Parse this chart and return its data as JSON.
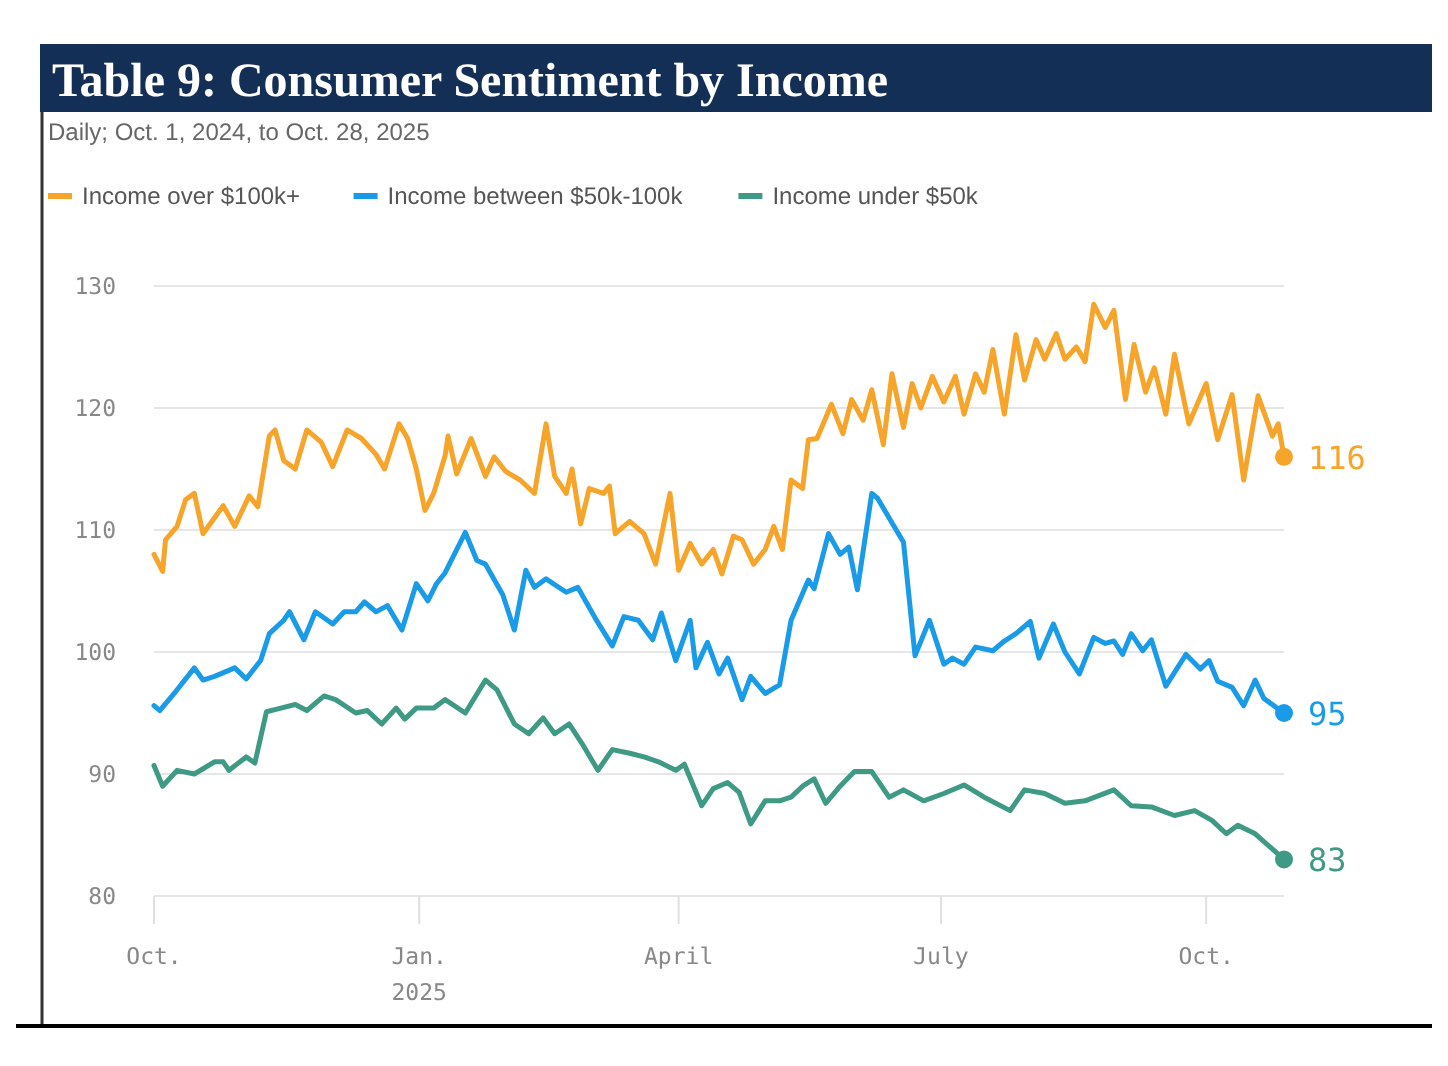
{
  "chart_data": {
    "type": "line",
    "title": "Table 9: Consumer Sentiment by Income",
    "subtitle": "Daily; Oct. 1, 2024, to Oct. 28, 2025",
    "xlim": [
      "2024-10-01",
      "2025-10-28"
    ],
    "xticks": [
      {
        "value": "2024-10-01",
        "label": "Oct."
      },
      {
        "value": "2025-01-01",
        "label": "Jan.\n2025"
      },
      {
        "value": "2025-04-01",
        "label": "April"
      },
      {
        "value": "2025-07-01",
        "label": "July"
      },
      {
        "value": "2025-10-01",
        "label": "Oct."
      }
    ],
    "ylim": [
      80,
      130
    ],
    "yticks": [
      80,
      90,
      100,
      110,
      120,
      130
    ],
    "grid": "y",
    "legend": "top left",
    "marker": "none",
    "line_style": "solid",
    "series": [
      {
        "name": "Income over $100k+",
        "color": "#f7a52a",
        "x": [
          "2024-10-01",
          "2024-10-04",
          "2024-10-05",
          "2024-10-09",
          "2024-10-12",
          "2024-10-15",
          "2024-10-18",
          "2024-10-22",
          "2024-10-25",
          "2024-10-29",
          "2024-11-03",
          "2024-11-06",
          "2024-11-10",
          "2024-11-12",
          "2024-11-15",
          "2024-11-19",
          "2024-11-23",
          "2024-11-28",
          "2024-12-02",
          "2024-12-07",
          "2024-12-12",
          "2024-12-17",
          "2024-12-20",
          "2024-12-25",
          "2024-12-28",
          "2024-12-31",
          "2025-01-03",
          "2025-01-06",
          "2025-01-10",
          "2025-01-11",
          "2025-01-14",
          "2025-01-19",
          "2025-01-24",
          "2025-01-27",
          "2025-01-31",
          "2025-02-05",
          "2025-02-10",
          "2025-02-14",
          "2025-02-17",
          "2025-02-21",
          "2025-02-23",
          "2025-02-26",
          "2025-03-01",
          "2025-03-06",
          "2025-03-08",
          "2025-03-10",
          "2025-03-15",
          "2025-03-20",
          "2025-03-24",
          "2025-03-29",
          "2025-04-01",
          "2025-04-05",
          "2025-04-09",
          "2025-04-13",
          "2025-04-16",
          "2025-04-20",
          "2025-04-23",
          "2025-04-27",
          "2025-05-01",
          "2025-05-04",
          "2025-05-07",
          "2025-05-10",
          "2025-05-14",
          "2025-05-16",
          "2025-05-19",
          "2025-05-24",
          "2025-05-28",
          "2025-05-31",
          "2025-06-04",
          "2025-06-07",
          "2025-06-11",
          "2025-06-14",
          "2025-06-18",
          "2025-06-21",
          "2025-06-24",
          "2025-06-28",
          "2025-07-02",
          "2025-07-06",
          "2025-07-09",
          "2025-07-13",
          "2025-07-16",
          "2025-07-19",
          "2025-07-23",
          "2025-07-27",
          "2025-07-30",
          "2025-08-03",
          "2025-08-06",
          "2025-08-10",
          "2025-08-13",
          "2025-08-17",
          "2025-08-20",
          "2025-08-23",
          "2025-08-27",
          "2025-08-30",
          "2025-09-03",
          "2025-09-06",
          "2025-09-10",
          "2025-09-13",
          "2025-09-17",
          "2025-09-20",
          "2025-09-25",
          "2025-10-01",
          "2025-10-05",
          "2025-10-10",
          "2025-10-14",
          "2025-10-19",
          "2025-10-24",
          "2025-10-26",
          "2025-10-28"
        ],
        "values": [
          108,
          106.6,
          109.2,
          110.3,
          112.5,
          113,
          109.7,
          111,
          112,
          110.3,
          112.8,
          111.9,
          117.7,
          118.2,
          115.7,
          115,
          118.2,
          117.2,
          115.2,
          118.2,
          117.5,
          116.2,
          115,
          118.7,
          117.5,
          115,
          111.6,
          113,
          116.1,
          117.7,
          114.6,
          117.5,
          114.4,
          116,
          114.8,
          114.1,
          113,
          118.7,
          114.4,
          113,
          115,
          110.5,
          113.4,
          113,
          113.6,
          109.7,
          110.7,
          109.7,
          107.2,
          113,
          106.7,
          108.9,
          107.2,
          108.4,
          106.4,
          109.5,
          109.2,
          107.2,
          108.4,
          110.3,
          108.4,
          114.1,
          113.4,
          117.4,
          117.5,
          120.3,
          117.9,
          120.7,
          119,
          121.5,
          117,
          122.8,
          118.4,
          122,
          120,
          122.6,
          120.5,
          122.6,
          119.5,
          122.8,
          121.3,
          124.8,
          119.5,
          126,
          122.3,
          125.6,
          124,
          126.1,
          124,
          125,
          123.8,
          128.5,
          126.6,
          128,
          120.7,
          125.2,
          121.3,
          123.3,
          119.5,
          124.4,
          118.7,
          122,
          117.4,
          121.1,
          114.1,
          121,
          117.7,
          118.7,
          116
        ]
      },
      {
        "name": "Income between $50k-100k",
        "color": "#1a9be8",
        "x": [
          "2024-10-01",
          "2024-10-03",
          "2024-10-08",
          "2024-10-15",
          "2024-10-18",
          "2024-10-22",
          "2024-10-29",
          "2024-11-02",
          "2024-11-07",
          "2024-11-10",
          "2024-11-15",
          "2024-11-17",
          "2024-11-22",
          "2024-11-26",
          "2024-12-02",
          "2024-12-06",
          "2024-12-10",
          "2024-12-13",
          "2024-12-17",
          "2024-12-21",
          "2024-12-26",
          "2024-12-31",
          "2025-01-04",
          "2025-01-07",
          "2025-01-10",
          "2025-01-17",
          "2025-01-21",
          "2025-01-24",
          "2025-01-30",
          "2025-02-03",
          "2025-02-07",
          "2025-02-10",
          "2025-02-14",
          "2025-02-21",
          "2025-02-25",
          "2025-03-03",
          "2025-03-09",
          "2025-03-13",
          "2025-03-18",
          "2025-03-23",
          "2025-03-26",
          "2025-03-31",
          "2025-04-05",
          "2025-04-07",
          "2025-04-11",
          "2025-04-15",
          "2025-04-18",
          "2025-04-23",
          "2025-04-26",
          "2025-05-01",
          "2025-05-06",
          "2025-05-10",
          "2025-05-16",
          "2025-05-18",
          "2025-05-23",
          "2025-05-27",
          "2025-05-30",
          "2025-06-02",
          "2025-06-07",
          "2025-06-09",
          "2025-06-14",
          "2025-06-18",
          "2025-06-22",
          "2025-06-27",
          "2025-07-02",
          "2025-07-05",
          "2025-07-09",
          "2025-07-13",
          "2025-07-19",
          "2025-07-23",
          "2025-07-27",
          "2025-08-01",
          "2025-08-04",
          "2025-08-09",
          "2025-08-13",
          "2025-08-18",
          "2025-08-23",
          "2025-08-27",
          "2025-08-30",
          "2025-09-02",
          "2025-09-05",
          "2025-09-09",
          "2025-09-12",
          "2025-09-17",
          "2025-09-24",
          "2025-09-29",
          "2025-10-02",
          "2025-10-05",
          "2025-10-10",
          "2025-10-14",
          "2025-10-18",
          "2025-10-21",
          "2025-10-28"
        ],
        "values": [
          95.6,
          95.2,
          96.6,
          98.7,
          97.7,
          98,
          98.7,
          97.8,
          99.3,
          101.5,
          102.6,
          103.3,
          101,
          103.3,
          102.3,
          103.3,
          103.3,
          104.1,
          103.3,
          103.8,
          101.8,
          105.6,
          104.2,
          105.6,
          106.5,
          109.8,
          107.5,
          107.2,
          104.7,
          101.8,
          106.7,
          105.3,
          106,
          104.9,
          105.3,
          102.8,
          100.5,
          102.9,
          102.6,
          101,
          103.2,
          99.3,
          102.6,
          98.7,
          100.8,
          98.2,
          99.5,
          96.1,
          98,
          96.6,
          97.3,
          102.6,
          105.9,
          105.2,
          109.7,
          108,
          108.6,
          105.1,
          113,
          112.6,
          110.6,
          109,
          99.7,
          102.6,
          99,
          99.5,
          99,
          100.4,
          100.1,
          100.9,
          101.5,
          102.5,
          99.5,
          102.3,
          100,
          98.2,
          101.2,
          100.7,
          100.9,
          99.8,
          101.5,
          100.1,
          101,
          97.2,
          99.8,
          98.6,
          99.3,
          97.6,
          97.1,
          95.6,
          97.7,
          96.2,
          95
        ]
      },
      {
        "name": "Income under $50k",
        "color": "#3f9a85",
        "x": [
          "2024-10-01",
          "2024-10-04",
          "2024-10-09",
          "2024-10-15",
          "2024-10-22",
          "2024-10-25",
          "2024-10-27",
          "2024-11-02",
          "2024-11-05",
          "2024-11-09",
          "2024-11-14",
          "2024-11-19",
          "2024-11-23",
          "2024-11-29",
          "2024-12-03",
          "2024-12-10",
          "2024-12-14",
          "2024-12-19",
          "2024-12-24",
          "2024-12-27",
          "2024-12-31",
          "2025-01-06",
          "2025-01-10",
          "2025-01-17",
          "2025-01-24",
          "2025-01-28",
          "2025-02-03",
          "2025-02-08",
          "2025-02-13",
          "2025-02-17",
          "2025-02-22",
          "2025-02-27",
          "2025-03-04",
          "2025-03-09",
          "2025-03-15",
          "2025-03-20",
          "2025-03-25",
          "2025-03-31",
          "2025-04-03",
          "2025-04-09",
          "2025-04-13",
          "2025-04-18",
          "2025-04-22",
          "2025-04-26",
          "2025-05-01",
          "2025-05-06",
          "2025-05-10",
          "2025-05-14",
          "2025-05-18",
          "2025-05-22",
          "2025-05-27",
          "2025-06-01",
          "2025-06-07",
          "2025-06-13",
          "2025-06-18",
          "2025-06-25",
          "2025-07-02",
          "2025-07-09",
          "2025-07-16",
          "2025-07-25",
          "2025-07-30",
          "2025-08-06",
          "2025-08-13",
          "2025-08-20",
          "2025-08-30",
          "2025-09-05",
          "2025-09-12",
          "2025-09-20",
          "2025-09-27",
          "2025-10-03",
          "2025-10-08",
          "2025-10-12",
          "2025-10-18",
          "2025-10-28"
        ],
        "values": [
          90.7,
          89,
          90.3,
          90,
          91,
          91,
          90.3,
          91.4,
          90.9,
          95.1,
          95.4,
          95.7,
          95.2,
          96.4,
          96.1,
          95,
          95.2,
          94.1,
          95.4,
          94.5,
          95.4,
          95.4,
          96.1,
          95,
          97.7,
          96.9,
          94.1,
          93.3,
          94.6,
          93.3,
          94.1,
          92.3,
          90.3,
          92,
          91.7,
          91.4,
          91,
          90.3,
          90.8,
          87.4,
          88.8,
          89.3,
          88.5,
          85.9,
          87.8,
          87.8,
          88.1,
          89,
          89.6,
          87.6,
          89,
          90.2,
          90.2,
          88.1,
          88.7,
          87.8,
          88.4,
          89.1,
          88.1,
          87,
          88.7,
          88.4,
          87.6,
          87.8,
          88.7,
          87.4,
          87.3,
          86.6,
          87,
          86.2,
          85.1,
          85.8,
          85.1,
          83
        ]
      }
    ],
    "annotations": [
      {
        "text": "116",
        "x": "2025-10-28",
        "y": 116
      },
      {
        "text": "95",
        "x": "2025-10-28",
        "y": 95
      },
      {
        "text": "83",
        "x": "2025-10-28",
        "y": 83
      }
    ]
  }
}
